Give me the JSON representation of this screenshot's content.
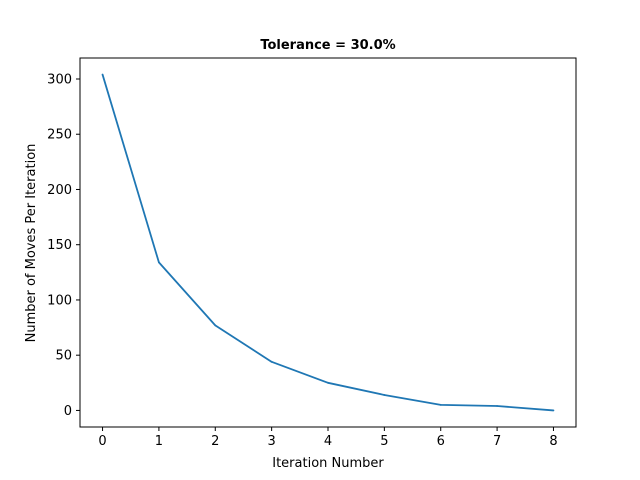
{
  "chart_data": {
    "type": "line",
    "title": "Tolerance = 30.0%",
    "xlabel": "Iteration Number",
    "ylabel": "Number of Moves Per Iteration",
    "xlim": [
      -0.4,
      8.4
    ],
    "ylim": [
      -15,
      319
    ],
    "x_ticks": [
      0,
      1,
      2,
      3,
      4,
      5,
      6,
      7,
      8
    ],
    "y_ticks": [
      0,
      50,
      100,
      150,
      200,
      250,
      300
    ],
    "grid": false,
    "series": [
      {
        "color": "#1f77b4",
        "x": [
          0,
          1,
          2,
          3,
          4,
          5,
          6,
          7,
          8
        ],
        "y": [
          304,
          134,
          77,
          44,
          25,
          14,
          5,
          4,
          0
        ]
      }
    ]
  }
}
